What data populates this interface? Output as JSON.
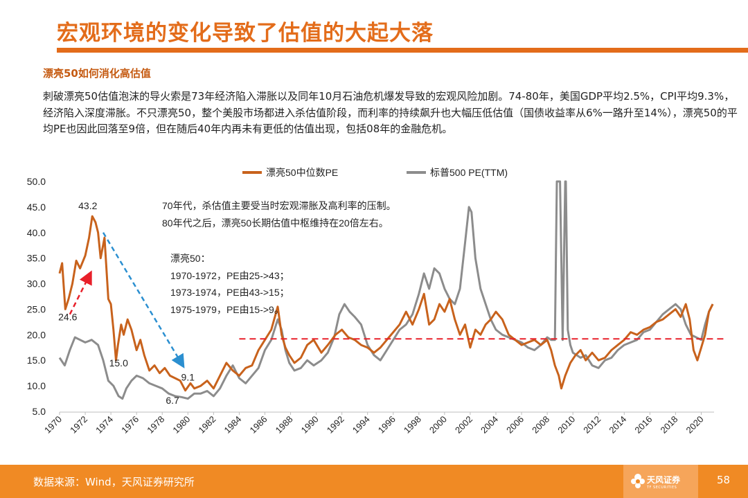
{
  "header": {
    "title": "宏观环境的变化导致了估值的大起大落",
    "subtitle": "漂亮50如何消化高估值",
    "paragraph": "刺破漂亮50估值泡沫的导火索是73年经济陷入滞胀以及同年10月石油危机爆发导致的宏观风险加剧。74-80年，美国GDP平均2.5%，CPI平均9.3%，经济陷入深度滞胀。不只漂亮50，整个美股市场都进入杀估值阶段，而利率的持续飙升也大幅压低估值（国债收益率从6%一路升至14%），漂亮50的平均PE也因此回落至9倍，但在随后40年内再未有更低的估值出现，包括08年的金融危机。"
  },
  "footer": {
    "source": "数据来源：Wind，天风证券研究所",
    "logo_text": "天风证券",
    "logo_sub": "TF SECURITIES",
    "page_number": "58"
  },
  "colors": {
    "orange": "#c8621c",
    "grey": "#8c8c8c",
    "accent": "#e36c1a",
    "red_dashed": "#e8202a",
    "blue_dashed": "#2b8fd0"
  },
  "chart_data": {
    "type": "line",
    "xlim": [
      1970,
      2021
    ],
    "ylim": [
      5,
      50
    ],
    "yticks": [
      "50.0",
      "45.0",
      "40.0",
      "35.0",
      "30.0",
      "25.0",
      "20.0",
      "15.0",
      "10.0",
      "5.0"
    ],
    "xticks": [
      "1970",
      "1972",
      "1974",
      "1976",
      "1978",
      "1980",
      "1982",
      "1984",
      "1986",
      "1988",
      "1990",
      "1992",
      "1994",
      "1996",
      "1998",
      "2000",
      "2002",
      "2004",
      "2006",
      "2008",
      "2010",
      "2012",
      "2014",
      "2016",
      "2018",
      "2020"
    ],
    "legend": {
      "position": "top"
    },
    "reference_line": {
      "y": 19.2,
      "style": "dashed"
    },
    "series": [
      {
        "name": "漂亮50中位数PE",
        "color": "#c8621c",
        "x": [
          1970.0,
          1970.2,
          1970.45,
          1970.7,
          1971.0,
          1971.3,
          1971.6,
          1972.0,
          1972.3,
          1972.55,
          1972.8,
          1973.0,
          1973.2,
          1973.5,
          1973.8,
          1974.0,
          1974.2,
          1974.4,
          1974.55,
          1974.8,
          1975.0,
          1975.3,
          1975.6,
          1976.0,
          1976.3,
          1976.6,
          1977.0,
          1977.4,
          1977.8,
          1978.2,
          1978.6,
          1979.0,
          1979.4,
          1979.8,
          1980.2,
          1980.5,
          1981.0,
          1981.5,
          1982.0,
          1982.5,
          1983.0,
          1983.5,
          1984.0,
          1984.5,
          1985.0,
          1985.5,
          1986.0,
          1986.5,
          1987.0,
          1987.3,
          1987.6,
          1987.9,
          1988.3,
          1988.8,
          1989.3,
          1989.8,
          1990.4,
          1990.9,
          1991.5,
          1992.0,
          1992.5,
          1993.0,
          1993.5,
          1994.0,
          1994.5,
          1995.0,
          1995.5,
          1996.0,
          1996.5,
          1997.0,
          1997.5,
          1998.0,
          1998.4,
          1998.8,
          1999.2,
          1999.6,
          2000.0,
          2000.4,
          2000.8,
          2001.2,
          2001.6,
          2002.0,
          2002.4,
          2002.8,
          2003.2,
          2003.6,
          2004.0,
          2004.5,
          2005.0,
          2005.5,
          2006.0,
          2006.5,
          2007.0,
          2007.5,
          2008.0,
          2008.3,
          2008.6,
          2008.9,
          2009.1,
          2009.4,
          2009.8,
          2010.2,
          2010.6,
          2011.0,
          2011.5,
          2012.0,
          2012.5,
          2013.0,
          2013.5,
          2014.0,
          2014.5,
          2015.0,
          2015.5,
          2016.0,
          2016.5,
          2017.0,
          2017.5,
          2018.0,
          2018.4,
          2018.8,
          2019.1,
          2019.4,
          2019.7,
          2020.0,
          2020.3,
          2020.6,
          2020.9
        ],
        "y": [
          32.0,
          34.0,
          25.0,
          27.0,
          30.0,
          34.5,
          33.0,
          35.5,
          39.0,
          43.2,
          42.0,
          40.0,
          35.0,
          39.0,
          27.0,
          26.0,
          21.0,
          15.0,
          18.0,
          22.0,
          20.0,
          23.0,
          21.0,
          17.0,
          19.0,
          16.0,
          13.0,
          14.0,
          12.5,
          13.5,
          12.0,
          11.5,
          11.0,
          9.1,
          10.5,
          9.5,
          10.0,
          11.0,
          9.5,
          12.0,
          14.5,
          13.0,
          12.0,
          13.5,
          14.0,
          17.0,
          19.0,
          21.0,
          25.5,
          20.0,
          17.5,
          16.0,
          14.5,
          15.5,
          18.0,
          19.0,
          16.5,
          18.0,
          20.0,
          21.0,
          19.5,
          19.0,
          18.0,
          17.5,
          16.5,
          17.5,
          19.0,
          20.5,
          22.0,
          24.5,
          22.0,
          25.0,
          28.0,
          22.0,
          23.0,
          26.0,
          24.5,
          27.0,
          23.0,
          20.0,
          22.0,
          17.5,
          21.0,
          20.0,
          22.0,
          23.0,
          24.5,
          23.0,
          20.0,
          19.0,
          18.0,
          18.5,
          19.0,
          18.0,
          19.0,
          17.0,
          14.0,
          12.0,
          9.5,
          12.0,
          14.5,
          16.0,
          17.0,
          15.0,
          16.5,
          15.0,
          15.5,
          17.0,
          18.0,
          19.0,
          20.5,
          20.0,
          21.0,
          21.5,
          22.5,
          23.0,
          24.0,
          25.0,
          23.5,
          26.0,
          23.0,
          17.0,
          15.0,
          17.5,
          20.0,
          24.5,
          26.0
        ]
      },
      {
        "name": "标普500 PE(TTM)",
        "color": "#8c8c8c",
        "x": [
          1970.0,
          1970.4,
          1970.8,
          1971.2,
          1971.6,
          1972.0,
          1972.5,
          1973.0,
          1973.4,
          1973.8,
          1974.2,
          1974.6,
          1974.9,
          1975.2,
          1975.6,
          1976.0,
          1976.5,
          1977.0,
          1977.5,
          1978.0,
          1978.5,
          1979.0,
          1979.5,
          1980.0,
          1980.5,
          1981.0,
          1981.5,
          1982.0,
          1982.5,
          1983.0,
          1983.5,
          1984.0,
          1984.5,
          1985.0,
          1985.5,
          1986.0,
          1986.5,
          1987.0,
          1987.3,
          1987.6,
          1987.9,
          1988.3,
          1988.8,
          1989.3,
          1989.8,
          1990.4,
          1990.9,
          1991.4,
          1991.8,
          1992.2,
          1992.6,
          1993.0,
          1993.5,
          1994.0,
          1994.5,
          1995.0,
          1995.5,
          1996.0,
          1996.5,
          1997.0,
          1997.5,
          1998.0,
          1998.4,
          1998.8,
          1999.2,
          1999.6,
          2000.0,
          2000.4,
          2000.8,
          2001.2,
          2001.6,
          2001.9,
          2002.1,
          2002.4,
          2002.8,
          2003.2,
          2003.6,
          2004.0,
          2004.5,
          2005.0,
          2005.5,
          2006.0,
          2006.5,
          2007.0,
          2007.5,
          2008.0,
          2008.3,
          2008.6,
          2008.75,
          2008.85,
          2009.0,
          2009.2,
          2009.4,
          2009.45,
          2009.6,
          2009.8,
          2010.0,
          2010.3,
          2010.6,
          2011.0,
          2011.5,
          2012.0,
          2012.5,
          2013.0,
          2013.5,
          2014.0,
          2014.5,
          2015.0,
          2015.5,
          2016.0,
          2016.5,
          2017.0,
          2017.5,
          2018.0,
          2018.4,
          2018.8,
          2019.2,
          2019.6,
          2020.0,
          2020.3,
          2020.6,
          2020.9
        ],
        "y": [
          15.5,
          14.0,
          17.0,
          19.5,
          19.0,
          18.5,
          19.0,
          18.0,
          15.0,
          11.0,
          10.0,
          8.0,
          7.5,
          9.5,
          11.0,
          12.0,
          11.5,
          10.5,
          10.0,
          9.5,
          8.5,
          8.0,
          7.8,
          7.5,
          8.5,
          8.5,
          9.0,
          8.0,
          9.5,
          12.0,
          14.0,
          11.5,
          10.5,
          12.0,
          13.5,
          17.0,
          19.0,
          23.0,
          21.0,
          17.0,
          14.5,
          13.0,
          13.5,
          15.0,
          14.0,
          15.0,
          16.5,
          19.5,
          24.0,
          26.0,
          24.5,
          23.5,
          22.0,
          18.0,
          16.0,
          15.0,
          17.0,
          19.0,
          21.0,
          22.0,
          24.0,
          28.0,
          32.0,
          29.0,
          33.0,
          32.0,
          29.0,
          27.0,
          26.0,
          29.0,
          38.0,
          45.0,
          44.0,
          35.0,
          29.0,
          26.0,
          23.0,
          21.0,
          20.0,
          19.5,
          19.0,
          18.5,
          17.5,
          17.0,
          18.0,
          19.5,
          19.0,
          19.0,
          50.0,
          50.0,
          50.0,
          19.0,
          50.0,
          50.0,
          21.0,
          18.0,
          16.5,
          16.0,
          15.5,
          16.0,
          14.0,
          13.5,
          15.0,
          15.5,
          17.0,
          18.0,
          18.5,
          19.0,
          20.5,
          21.0,
          22.5,
          24.0,
          25.0,
          26.0,
          25.0,
          22.0,
          20.0,
          19.5,
          19.0,
          22.0,
          24.5,
          26.0
        ]
      }
    ],
    "annotations": [
      "43.2",
      "24.6",
      "15.0",
      "9.1",
      "6.7",
      "70年代，杀估值主要受当时宏观滞胀及高利率的压制。",
      "80年代之后，漂亮50长期估值中枢维持在20倍左右。",
      "漂亮50：",
      "1970-1972，PE由25->43；",
      "1973-1974，PE由43->15；",
      "1975-1979，PE由15->9。"
    ]
  }
}
